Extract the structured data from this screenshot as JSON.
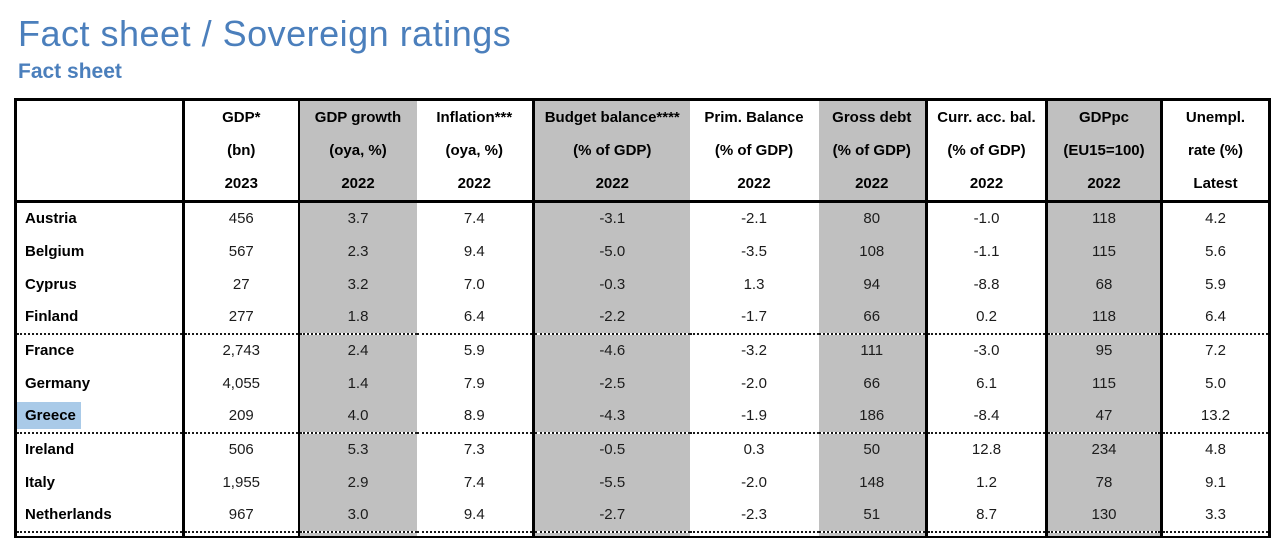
{
  "page": {
    "title": "Fact sheet / Sovereign ratings",
    "subtitle": "Fact sheet",
    "accent_color": "#4b7fbc"
  },
  "table": {
    "shade_color": "#c0c0c0",
    "highlight_color": "#a9cae8",
    "columns": [
      {
        "id": "country",
        "lines": [
          "",
          "",
          ""
        ],
        "shaded": false
      },
      {
        "id": "gdp",
        "lines": [
          "GDP*",
          "(bn)",
          "2023"
        ],
        "shaded": false
      },
      {
        "id": "gdp-growth",
        "lines": [
          "GDP growth",
          "(oya, %)",
          "2022"
        ],
        "shaded": true
      },
      {
        "id": "inflation",
        "lines": [
          "Inflation***",
          "(oya, %)",
          "2022"
        ],
        "shaded": false
      },
      {
        "id": "budget-balance",
        "lines": [
          "Budget balance****",
          "(% of GDP)",
          "2022"
        ],
        "shaded": true
      },
      {
        "id": "prim-balance",
        "lines": [
          "Prim. Balance",
          "(% of GDP)",
          "2022"
        ],
        "shaded": false
      },
      {
        "id": "gross-debt",
        "lines": [
          "Gross debt",
          "(% of GDP)",
          "2022"
        ],
        "shaded": true
      },
      {
        "id": "curr-acc-bal",
        "lines": [
          "Curr. acc. bal.",
          "(% of GDP)",
          "2022"
        ],
        "shaded": false
      },
      {
        "id": "gdppc",
        "lines": [
          "GDPpc",
          "(EU15=100)",
          "2022"
        ],
        "shaded": true
      },
      {
        "id": "unempl",
        "lines": [
          "Unempl.",
          "rate (%)",
          "Latest"
        ],
        "shaded": false
      }
    ],
    "rows": [
      {
        "country": "Austria",
        "highlighted": false,
        "group_start": false,
        "values": [
          "456",
          "3.7",
          "7.4",
          "-3.1",
          "-2.1",
          "80",
          "-1.0",
          "118",
          "4.2"
        ]
      },
      {
        "country": "Belgium",
        "highlighted": false,
        "group_start": false,
        "values": [
          "567",
          "2.3",
          "9.4",
          "-5.0",
          "-3.5",
          "108",
          "-1.1",
          "115",
          "5.6"
        ]
      },
      {
        "country": "Cyprus",
        "highlighted": false,
        "group_start": false,
        "values": [
          "27",
          "3.2",
          "7.0",
          "-0.3",
          "1.3",
          "94",
          "-8.8",
          "68",
          "5.9"
        ]
      },
      {
        "country": "Finland",
        "highlighted": false,
        "group_start": false,
        "values": [
          "277",
          "1.8",
          "6.4",
          "-2.2",
          "-1.7",
          "66",
          "0.2",
          "118",
          "6.4"
        ]
      },
      {
        "country": "France",
        "highlighted": false,
        "group_start": true,
        "values": [
          "2,743",
          "2.4",
          "5.9",
          "-4.6",
          "-3.2",
          "111",
          "-3.0",
          "95",
          "7.2"
        ]
      },
      {
        "country": "Germany",
        "highlighted": false,
        "group_start": false,
        "values": [
          "4,055",
          "1.4",
          "7.9",
          "-2.5",
          "-2.0",
          "66",
          "6.1",
          "115",
          "5.0"
        ]
      },
      {
        "country": "Greece",
        "highlighted": true,
        "group_start": false,
        "values": [
          "209",
          "4.0",
          "8.9",
          "-4.3",
          "-1.9",
          "186",
          "-8.4",
          "47",
          "13.2"
        ]
      },
      {
        "country": "Ireland",
        "highlighted": false,
        "group_start": true,
        "values": [
          "506",
          "5.3",
          "7.3",
          "-0.5",
          "0.3",
          "50",
          "12.8",
          "234",
          "4.8"
        ]
      },
      {
        "country": "Italy",
        "highlighted": false,
        "group_start": false,
        "values": [
          "1,955",
          "2.9",
          "7.4",
          "-5.5",
          "-2.0",
          "148",
          "1.2",
          "78",
          "9.1"
        ]
      },
      {
        "country": "Netherlands",
        "highlighted": false,
        "group_start": false,
        "values": [
          "967",
          "3.0",
          "9.4",
          "-2.7",
          "-2.3",
          "51",
          "8.7",
          "130",
          "3.3"
        ]
      }
    ]
  }
}
